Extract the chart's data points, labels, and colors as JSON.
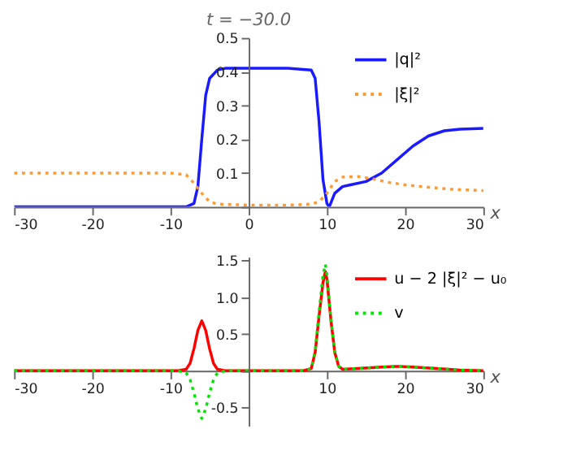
{
  "chart_data": [
    {
      "type": "line",
      "title": "t = −30.0",
      "xlabel": "x",
      "xlim": [
        -30,
        30
      ],
      "xticks": [
        -30,
        -20,
        -10,
        0,
        10,
        20,
        30
      ],
      "ylim": [
        0,
        0.5
      ],
      "yticks": [
        {
          "value": 0,
          "label": null
        },
        0.1,
        0.2,
        0.3,
        0.4,
        0.5
      ],
      "grid": false,
      "legend": "top right",
      "series": [
        {
          "name": "|q|²",
          "color": "#1a1aff",
          "line_style": "solid",
          "x": [
            -30,
            -10,
            -8,
            -7,
            -6.5,
            -6,
            -5.5,
            -5,
            -4,
            -3,
            0,
            5,
            8,
            8.5,
            9,
            9.5,
            10,
            10.3,
            11,
            12,
            13,
            15,
            17,
            19,
            21,
            23,
            25,
            27,
            30
          ],
          "values": [
            0,
            0,
            0,
            0.01,
            0.06,
            0.2,
            0.33,
            0.38,
            0.405,
            0.41,
            0.41,
            0.41,
            0.405,
            0.38,
            0.25,
            0.08,
            0.01,
            0,
            0.04,
            0.06,
            0.065,
            0.075,
            0.1,
            0.14,
            0.18,
            0.21,
            0.225,
            0.23,
            0.232
          ]
        },
        {
          "name": "|ξ|²",
          "color": "#ff9933",
          "line_style": "dotted",
          "x": [
            -30,
            -10,
            -8,
            -7,
            -6,
            -5,
            -4,
            0,
            5,
            8,
            9,
            10,
            11,
            12,
            14,
            16,
            18,
            20,
            23,
            26,
            30
          ],
          "values": [
            0.1,
            0.1,
            0.095,
            0.07,
            0.04,
            0.015,
            0.008,
            0.005,
            0.005,
            0.008,
            0.015,
            0.04,
            0.075,
            0.088,
            0.09,
            0.082,
            0.072,
            0.065,
            0.058,
            0.052,
            0.048
          ]
        }
      ]
    },
    {
      "type": "line",
      "xlabel": "x",
      "xlim": [
        -30,
        30
      ],
      "xticks": [
        -30,
        -20,
        -10,
        {
          "value": 0,
          "label": null
        },
        10,
        20,
        30
      ],
      "ylim": [
        -0.75,
        1.55
      ],
      "yticks": [
        {
          "value": -0.5,
          "label": "-0.5"
        },
        {
          "value": 0,
          "label": null
        },
        0.5,
        {
          "value": 1,
          "label": "1.0"
        },
        1.5
      ],
      "grid": false,
      "legend": "top right",
      "series": [
        {
          "name": "u − 2 |ξ|² − u₀",
          "color": "#ff0000",
          "line_style": "solid",
          "x": [
            -30,
            -9,
            -8,
            -7.5,
            -7,
            -6.5,
            -6,
            -5.5,
            -5,
            -4.5,
            -4,
            -3,
            0,
            7,
            8,
            8.5,
            9,
            9.5,
            9.8,
            10,
            10.5,
            11,
            11.5,
            12,
            14,
            17,
            19,
            21,
            24,
            27,
            30
          ],
          "values": [
            0,
            0,
            0.02,
            0.1,
            0.3,
            0.55,
            0.68,
            0.55,
            0.3,
            0.1,
            0.02,
            0,
            0,
            0,
            0.03,
            0.25,
            0.75,
            1.2,
            1.35,
            1.25,
            0.7,
            0.25,
            0.06,
            0.02,
            0.03,
            0.05,
            0.06,
            0.05,
            0.03,
            0.01,
            0
          ]
        },
        {
          "name": "v",
          "color": "#00e600",
          "line_style": "dotted",
          "x": [
            -30,
            -9,
            -8,
            -7.5,
            -7,
            -6.5,
            -6,
            -5.5,
            -5,
            -4.5,
            -4,
            -3,
            0,
            7,
            8,
            8.5,
            9,
            9.5,
            9.8,
            10,
            10.5,
            11,
            11.5,
            12,
            14,
            17,
            19,
            21,
            24,
            27,
            30
          ],
          "values": [
            0,
            0,
            -0.03,
            -0.12,
            -0.3,
            -0.52,
            -0.65,
            -0.52,
            -0.3,
            -0.12,
            -0.03,
            0,
            0,
            0,
            0.03,
            0.27,
            0.8,
            1.3,
            1.45,
            1.3,
            0.72,
            0.26,
            0.06,
            0.02,
            0.03,
            0.05,
            0.06,
            0.05,
            0.03,
            0.01,
            0
          ]
        }
      ]
    }
  ]
}
